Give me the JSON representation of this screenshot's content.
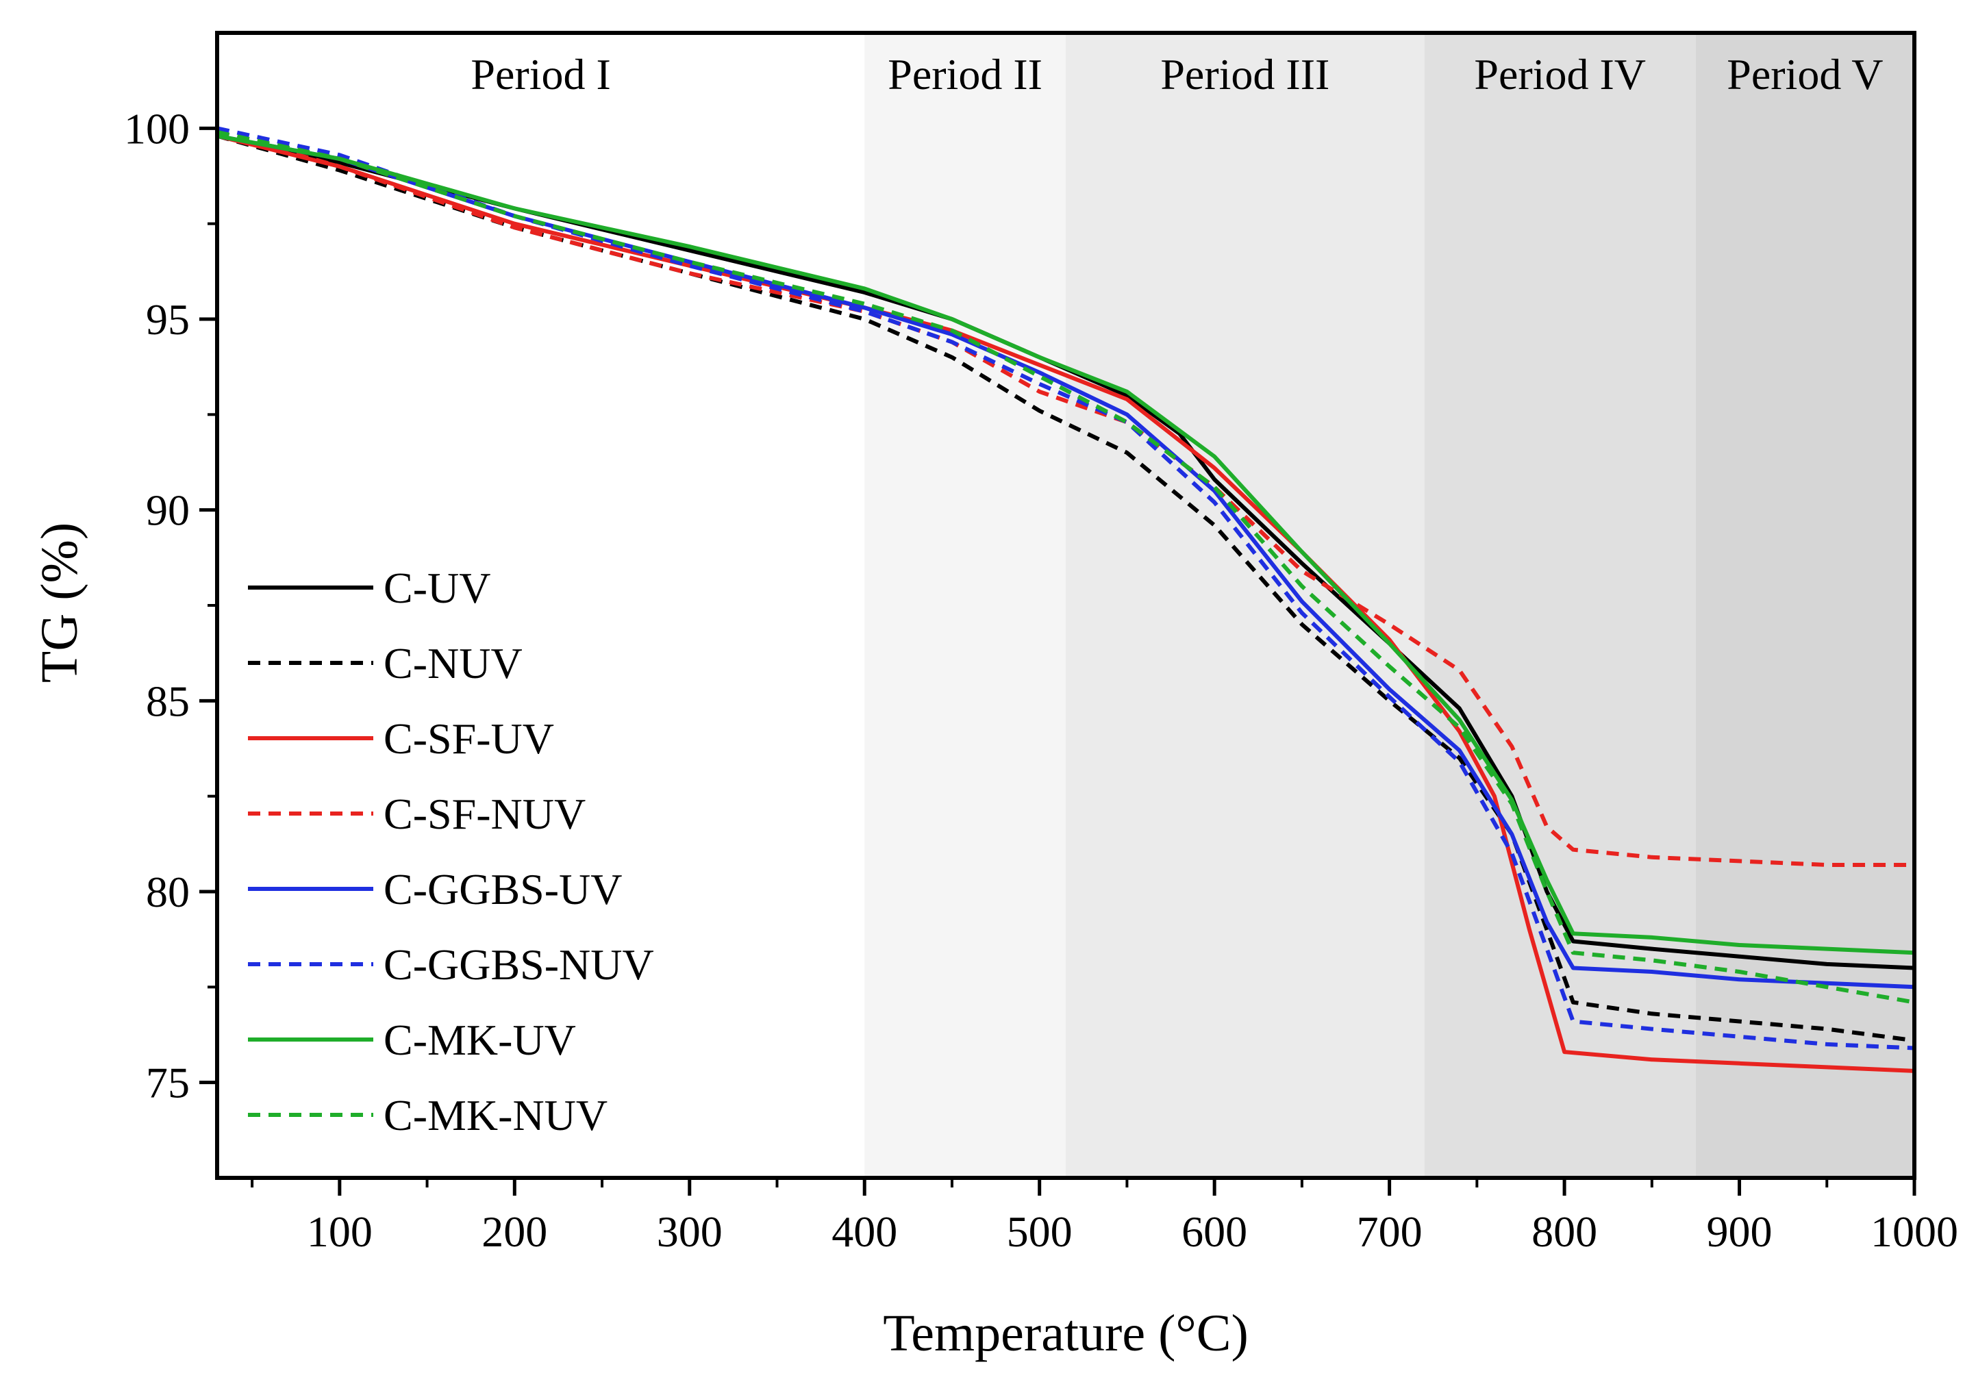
{
  "chart_data": {
    "type": "line",
    "title": "",
    "xlabel": "Temperature (°C)",
    "ylabel": "TG (%)",
    "xlim": [
      30,
      1000
    ],
    "ylim": [
      72.5,
      102.5
    ],
    "xticks": [
      100,
      200,
      300,
      400,
      500,
      600,
      700,
      800,
      900,
      1000
    ],
    "yticks": [
      75,
      80,
      85,
      90,
      95,
      100
    ],
    "xtick_labels": [
      "100",
      "200",
      "300",
      "400",
      "500",
      "600",
      "700",
      "800",
      "900",
      "1000"
    ],
    "ytick_labels": [
      "75",
      "80",
      "85",
      "90",
      "95",
      "100"
    ],
    "grid": false,
    "legend_position": "lower-left",
    "periods": [
      {
        "label": "Period I",
        "start": 30,
        "end": 400,
        "color": "#ffffff"
      },
      {
        "label": "Period II",
        "start": 400,
        "end": 515,
        "color": "#f5f5f5"
      },
      {
        "label": "Period III",
        "start": 515,
        "end": 720,
        "color": "#ebebeb"
      },
      {
        "label": "Period IV",
        "start": 720,
        "end": 875,
        "color": "#e0e0e0"
      },
      {
        "label": "Period V",
        "start": 875,
        "end": 1000,
        "color": "#d6d6d6"
      }
    ],
    "series": [
      {
        "name": "C-UV",
        "color": "#000000",
        "dash": "solid",
        "x": [
          30,
          100,
          200,
          300,
          400,
          450,
          500,
          550,
          580,
          600,
          650,
          700,
          740,
          770,
          790,
          805,
          850,
          900,
          950,
          1000
        ],
        "y": [
          99.8,
          99.1,
          97.9,
          96.8,
          95.7,
          95.0,
          94.0,
          93.0,
          92.0,
          90.8,
          88.6,
          86.5,
          84.8,
          82.5,
          80.0,
          78.7,
          78.5,
          78.3,
          78.1,
          78.0
        ]
      },
      {
        "name": "C-NUV",
        "color": "#000000",
        "dash": "dashed",
        "x": [
          30,
          100,
          200,
          300,
          400,
          450,
          500,
          550,
          600,
          650,
          700,
          740,
          770,
          790,
          805,
          850,
          900,
          950,
          1000
        ],
        "y": [
          99.8,
          98.9,
          97.4,
          96.2,
          95.0,
          94.0,
          92.6,
          91.5,
          89.6,
          87.0,
          85.0,
          83.5,
          81.5,
          79.0,
          77.1,
          76.8,
          76.6,
          76.4,
          76.1
        ]
      },
      {
        "name": "C-SF-UV",
        "color": "#e8231f",
        "dash": "solid",
        "x": [
          30,
          100,
          200,
          300,
          400,
          450,
          500,
          550,
          600,
          650,
          700,
          740,
          760,
          780,
          800,
          850,
          900,
          950,
          1000
        ],
        "y": [
          99.8,
          99.0,
          97.5,
          96.4,
          95.3,
          94.7,
          93.8,
          92.9,
          91.1,
          88.9,
          86.6,
          84.2,
          82.5,
          79.0,
          75.8,
          75.6,
          75.5,
          75.4,
          75.3
        ]
      },
      {
        "name": "C-SF-NUV",
        "color": "#e8231f",
        "dash": "dashed",
        "x": [
          30,
          100,
          200,
          300,
          400,
          450,
          500,
          550,
          600,
          650,
          700,
          740,
          770,
          790,
          805,
          850,
          900,
          950,
          1000
        ],
        "y": [
          99.9,
          99.0,
          97.4,
          96.2,
          95.2,
          94.4,
          93.1,
          92.3,
          90.6,
          88.4,
          87.0,
          85.8,
          83.8,
          81.7,
          81.1,
          80.9,
          80.8,
          80.7,
          80.7
        ]
      },
      {
        "name": "C-GGBS-UV",
        "color": "#1f2fe0",
        "dash": "solid",
        "x": [
          30,
          100,
          200,
          300,
          400,
          450,
          500,
          550,
          600,
          650,
          700,
          740,
          770,
          790,
          805,
          850,
          900,
          950,
          1000
        ],
        "y": [
          99.8,
          99.2,
          97.7,
          96.5,
          95.3,
          94.6,
          93.6,
          92.5,
          90.5,
          87.6,
          85.3,
          83.7,
          81.5,
          79.2,
          78.0,
          77.9,
          77.7,
          77.6,
          77.5
        ]
      },
      {
        "name": "C-GGBS-NUV",
        "color": "#1f2fe0",
        "dash": "dashed",
        "x": [
          30,
          100,
          200,
          300,
          400,
          450,
          500,
          550,
          600,
          650,
          700,
          740,
          770,
          790,
          805,
          850,
          900,
          950,
          1000
        ],
        "y": [
          100.0,
          99.3,
          97.7,
          96.4,
          95.2,
          94.4,
          93.3,
          92.3,
          90.2,
          87.3,
          85.1,
          83.4,
          81.0,
          78.5,
          76.6,
          76.4,
          76.2,
          76.0,
          75.9
        ]
      },
      {
        "name": "C-MK-UV",
        "color": "#1fad2a",
        "dash": "solid",
        "x": [
          30,
          100,
          200,
          300,
          400,
          450,
          500,
          550,
          600,
          650,
          700,
          740,
          770,
          790,
          805,
          850,
          900,
          950,
          1000
        ],
        "y": [
          99.8,
          99.2,
          97.9,
          96.9,
          95.8,
          95.0,
          94.0,
          93.1,
          91.4,
          88.9,
          86.5,
          84.5,
          82.4,
          80.3,
          78.9,
          78.8,
          78.6,
          78.5,
          78.4
        ]
      },
      {
        "name": "C-MK-NUV",
        "color": "#1fad2a",
        "dash": "dashed",
        "x": [
          30,
          100,
          200,
          300,
          400,
          450,
          500,
          550,
          600,
          650,
          700,
          740,
          770,
          790,
          805,
          850,
          900,
          950,
          1000
        ],
        "y": [
          99.9,
          99.2,
          97.7,
          96.5,
          95.4,
          94.7,
          93.5,
          92.3,
          90.6,
          88.0,
          85.9,
          84.3,
          82.3,
          80.0,
          78.4,
          78.2,
          77.9,
          77.5,
          77.1
        ]
      }
    ]
  }
}
